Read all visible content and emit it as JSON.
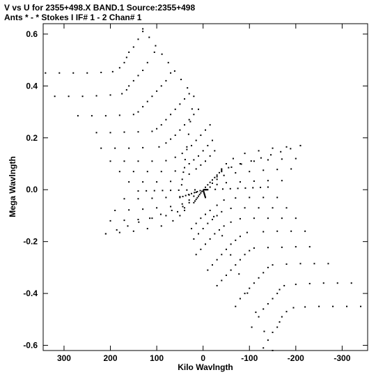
{
  "header": {
    "line1": "V vs U for 2355+498.X BAND.1   Source:2355+498",
    "line2": "Ants * - *     Stokes I  IF# 1 - 2  Chan# 1"
  },
  "chart_data": {
    "type": "scatter",
    "title": "V vs U for 2355+498.X BAND.1   Source:2355+498",
    "subtitle": "Ants * - *     Stokes I  IF# 1 - 2  Chan# 1",
    "xlabel": "Kilo Wavlngth",
    "ylabel": "Mega Wavlngth",
    "xlim": [
      345,
      -355
    ],
    "ylim": [
      -0.62,
      0.64
    ],
    "x_ticks": [
      300,
      200,
      100,
      0,
      -100,
      -200,
      -300
    ],
    "x_tick_labels": [
      "300",
      "200",
      "100",
      "0",
      "-100",
      "-200",
      "-300"
    ],
    "y_ticks": [
      0.6,
      0.4,
      0.2,
      0.0,
      -0.2,
      -0.4,
      -0.6
    ],
    "y_tick_labels": [
      "0.6",
      "0.4",
      "0.2",
      "0.0",
      "-0.2",
      "-0.4",
      "-0.6"
    ],
    "grid": false,
    "marker_color": "#000000",
    "series": [
      {
        "arms": [
          {
            "origin": [
              0,
              0
            ],
            "turns": [
              [
                0,
                0
              ],
              [
                -40,
                0.075
              ],
              [
                -210,
                0.17
              ]
            ]
          },
          {
            "origin": [
              0,
              0
            ],
            "turns": [
              [
                0,
                0
              ],
              [
                50,
                -0.03
              ],
              [
                20,
                0.36
              ],
              [
                130,
                0.62
              ]
            ]
          },
          {
            "origin": [
              0,
              0
            ],
            "turns": [
              [
                0,
                0
              ],
              [
                20,
                -0.05
              ],
              [
                210,
                -0.17
              ]
            ]
          },
          {
            "origin": [
              0,
              0
            ],
            "turns": [
              [
                0,
                0
              ],
              [
                -5,
                -0.03
              ],
              [
                -150,
                -0.62
              ]
            ]
          },
          {
            "origin": [
              0,
              0
            ],
            "turns": [
              [
                0,
                0
              ],
              [
                -10,
                0.0
              ],
              [
                -140,
                0.01
              ]
            ]
          },
          {
            "origin": [
              0,
              0
            ],
            "turns": [
              [
                0,
                0
              ],
              [
                140,
                -0.005
              ]
            ]
          }
        ],
        "tracks": [
          {
            "x": [
              340,
              310,
              280,
              250,
              220,
              195,
              180,
              170,
              165,
              160,
              150,
              140,
              130
            ],
            "y": [
              0.45,
              0.45,
              0.45,
              0.45,
              0.452,
              0.455,
              0.47,
              0.49,
              0.51,
              0.53,
              0.55,
              0.58,
              0.61
            ]
          },
          {
            "x": [
              320,
              290,
              260,
              230,
              200,
              175,
              165,
              160,
              150,
              140,
              130,
              120,
              105
            ],
            "y": [
              0.36,
              0.36,
              0.36,
              0.362,
              0.365,
              0.37,
              0.385,
              0.4,
              0.42,
              0.44,
              0.46,
              0.49,
              0.53
            ]
          },
          {
            "x": [
              270,
              240,
              210,
              180,
              150,
              140,
              130,
              120,
              110,
              100,
              90,
              80,
              70
            ],
            "y": [
              0.285,
              0.285,
              0.285,
              0.287,
              0.29,
              0.3,
              0.32,
              0.34,
              0.36,
              0.38,
              0.4,
              0.42,
              0.45
            ]
          },
          {
            "x": [
              230,
              200,
              170,
              140,
              110,
              100,
              90,
              80,
              70,
              60,
              50,
              40,
              30
            ],
            "y": [
              0.22,
              0.22,
              0.222,
              0.223,
              0.225,
              0.235,
              0.25,
              0.27,
              0.29,
              0.31,
              0.33,
              0.35,
              0.37
            ]
          },
          {
            "x": [
              220,
              190,
              160,
              130,
              95,
              80,
              70,
              60,
              50,
              40,
              30,
              20,
              10
            ],
            "y": [
              0.16,
              0.16,
              0.16,
              0.162,
              0.165,
              0.18,
              0.195,
              0.21,
              0.23,
              0.25,
              0.27,
              0.29,
              0.31
            ]
          },
          {
            "x": [
              200,
              170,
              140,
              110,
              80,
              60,
              45,
              35,
              25,
              15,
              5,
              -5,
              -15
            ],
            "y": [
              0.11,
              0.11,
              0.11,
              0.11,
              0.112,
              0.125,
              0.14,
              0.155,
              0.17,
              0.19,
              0.21,
              0.23,
              0.25
            ]
          },
          {
            "x": [
              180,
              150,
              120,
              90,
              60,
              40,
              30,
              20,
              10,
              0,
              -10,
              -20
            ],
            "y": [
              0.07,
              0.07,
              0.07,
              0.07,
              0.072,
              0.085,
              0.1,
              0.115,
              0.13,
              0.15,
              0.17,
              0.19
            ]
          },
          {
            "x": [
              160,
              130,
              100,
              70,
              45,
              30,
              15,
              5,
              -5,
              -15,
              -25
            ],
            "y": [
              0.03,
              0.03,
              0.03,
              0.032,
              0.04,
              0.06,
              0.08,
              0.095,
              0.11,
              0.13,
              0.15
            ]
          },
          {
            "x": [
              -340,
              -310,
              -280,
              -250,
              -220,
              -195,
              -180,
              -170,
              -165,
              -160,
              -150,
              -140,
              -130
            ],
            "y": [
              -0.45,
              -0.45,
              -0.45,
              -0.45,
              -0.452,
              -0.455,
              -0.47,
              -0.49,
              -0.51,
              -0.53,
              -0.55,
              -0.58,
              -0.61
            ]
          },
          {
            "x": [
              -320,
              -290,
              -260,
              -230,
              -200,
              -175,
              -165,
              -160,
              -150,
              -140,
              -130,
              -120,
              -105
            ],
            "y": [
              -0.36,
              -0.36,
              -0.36,
              -0.362,
              -0.365,
              -0.37,
              -0.385,
              -0.4,
              -0.42,
              -0.44,
              -0.46,
              -0.49,
              -0.53
            ]
          },
          {
            "x": [
              -270,
              -240,
              -210,
              -180,
              -150,
              -140,
              -130,
              -120,
              -110,
              -100,
              -90,
              -80,
              -70
            ],
            "y": [
              -0.285,
              -0.285,
              -0.285,
              -0.287,
              -0.29,
              -0.3,
              -0.32,
              -0.34,
              -0.36,
              -0.38,
              -0.4,
              -0.42,
              -0.45
            ]
          },
          {
            "x": [
              -230,
              -200,
              -170,
              -140,
              -110,
              -100,
              -90,
              -80,
              -70,
              -60,
              -50,
              -40,
              -30
            ],
            "y": [
              -0.22,
              -0.22,
              -0.222,
              -0.223,
              -0.225,
              -0.235,
              -0.25,
              -0.27,
              -0.29,
              -0.31,
              -0.33,
              -0.35,
              -0.37
            ]
          },
          {
            "x": [
              -220,
              -190,
              -160,
              -130,
              -95,
              -80,
              -70,
              -60,
              -50,
              -40,
              -30,
              -20,
              -10
            ],
            "y": [
              -0.16,
              -0.16,
              -0.16,
              -0.162,
              -0.165,
              -0.18,
              -0.195,
              -0.21,
              -0.23,
              -0.25,
              -0.27,
              -0.29,
              -0.31
            ]
          },
          {
            "x": [
              -200,
              -170,
              -140,
              -110,
              -80,
              -60,
              -45,
              -35,
              -25,
              -15,
              -5,
              5,
              15
            ],
            "y": [
              -0.11,
              -0.11,
              -0.11,
              -0.11,
              -0.112,
              -0.125,
              -0.14,
              -0.155,
              -0.17,
              -0.19,
              -0.21,
              -0.23,
              -0.25
            ]
          },
          {
            "x": [
              -180,
              -150,
              -120,
              -90,
              -60,
              -40,
              -30,
              -20,
              -10,
              0,
              10,
              20
            ],
            "y": [
              -0.07,
              -0.07,
              -0.07,
              -0.07,
              -0.072,
              -0.085,
              -0.1,
              -0.115,
              -0.13,
              -0.15,
              -0.17,
              -0.19
            ]
          },
          {
            "x": [
              -160,
              -130,
              -100,
              -70,
              -45,
              -30,
              -15,
              -5,
              5,
              15,
              25
            ],
            "y": [
              -0.03,
              -0.03,
              -0.03,
              -0.032,
              -0.04,
              -0.06,
              -0.08,
              -0.095,
              -0.11,
              -0.13,
              -0.15
            ]
          },
          {
            "x": [
              -210,
              -180,
              -150,
              -120,
              -90,
              -65,
              -50,
              -40
            ],
            "y": [
              0.17,
              0.165,
              0.16,
              0.15,
              0.14,
              0.12,
              0.1,
              0.08
            ]
          },
          {
            "x": [
              -200,
              -170,
              -140,
              -110,
              -80,
              -55,
              -40,
              -30
            ],
            "y": [
              0.12,
              0.118,
              0.115,
              0.11,
              0.1,
              0.085,
              0.07,
              0.05
            ]
          },
          {
            "x": [
              -190,
              -160,
              -130,
              -100,
              -70,
              -45,
              -30,
              -20
            ],
            "y": [
              0.08,
              0.078,
              0.075,
              0.07,
              0.065,
              0.055,
              0.04,
              0.025
            ]
          },
          {
            "x": [
              -170,
              -140,
              -110,
              -80,
              -50,
              -30,
              -15
            ],
            "y": [
              0.035,
              0.035,
              0.033,
              0.03,
              0.027,
              0.02,
              0.01
            ]
          },
          {
            "x": [
              210,
              180,
              150,
              120,
              90,
              65,
              50,
              40
            ],
            "y": [
              -0.17,
              -0.165,
              -0.16,
              -0.15,
              -0.14,
              -0.12,
              -0.1,
              -0.08
            ]
          },
          {
            "x": [
              200,
              170,
              140,
              110,
              80,
              55,
              40,
              30
            ],
            "y": [
              -0.12,
              -0.118,
              -0.115,
              -0.11,
              -0.1,
              -0.085,
              -0.07,
              -0.05
            ]
          },
          {
            "x": [
              190,
              160,
              130,
              100,
              70,
              45,
              30,
              20
            ],
            "y": [
              -0.08,
              -0.078,
              -0.075,
              -0.07,
              -0.065,
              -0.055,
              -0.04,
              -0.025
            ]
          },
          {
            "x": [
              170,
              140,
              110,
              80,
              50,
              30,
              15
            ],
            "y": [
              -0.035,
              -0.035,
              -0.033,
              -0.03,
              -0.027,
              -0.02,
              -0.01
            ]
          }
        ]
      }
    ]
  }
}
